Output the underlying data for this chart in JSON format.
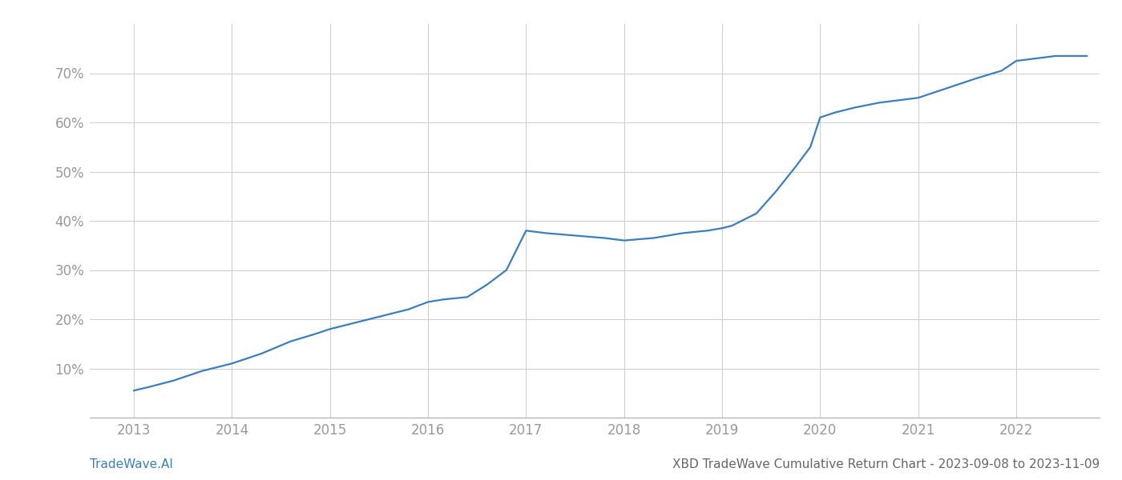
{
  "title": "",
  "footer_left": "TradeWave.AI",
  "footer_right": "XBD TradeWave Cumulative Return Chart - 2023-09-08 to 2023-11-09",
  "line_color": "#3a7ebf",
  "background_color": "#ffffff",
  "grid_color": "#cccccc",
  "x_years": [
    2013,
    2014,
    2015,
    2016,
    2017,
    2018,
    2019,
    2020,
    2021,
    2022
  ],
  "x_data": [
    2013.0,
    2013.15,
    2013.4,
    2013.7,
    2014.0,
    2014.3,
    2014.6,
    2014.85,
    2015.0,
    2015.2,
    2015.5,
    2015.8,
    2016.0,
    2016.15,
    2016.4,
    2016.6,
    2016.8,
    2017.0,
    2017.2,
    2017.5,
    2017.8,
    2018.0,
    2018.3,
    2018.6,
    2018.85,
    2019.0,
    2019.1,
    2019.2,
    2019.35,
    2019.55,
    2019.75,
    2019.9,
    2020.0,
    2020.15,
    2020.35,
    2020.6,
    2020.8,
    2021.0,
    2021.3,
    2021.6,
    2021.85,
    2022.0,
    2022.4,
    2022.72
  ],
  "y_data": [
    5.5,
    6.2,
    7.5,
    9.5,
    11.0,
    13.0,
    15.5,
    17.0,
    18.0,
    19.0,
    20.5,
    22.0,
    23.5,
    24.0,
    24.5,
    27.0,
    30.0,
    38.0,
    37.5,
    37.0,
    36.5,
    36.0,
    36.5,
    37.5,
    38.0,
    38.5,
    39.0,
    40.0,
    41.5,
    46.0,
    51.0,
    55.0,
    61.0,
    62.0,
    63.0,
    64.0,
    64.5,
    65.0,
    67.0,
    69.0,
    70.5,
    72.5,
    73.5,
    73.5
  ],
  "ylim": [
    0,
    80
  ],
  "yticks": [
    10,
    20,
    30,
    40,
    50,
    60,
    70
  ],
  "xlim": [
    2012.55,
    2022.85
  ],
  "tick_color": "#999999",
  "tick_fontsize": 12,
  "footer_fontsize": 11,
  "footer_left_color": "#3a7ebf",
  "footer_right_color": "#666666",
  "line_width": 1.6
}
